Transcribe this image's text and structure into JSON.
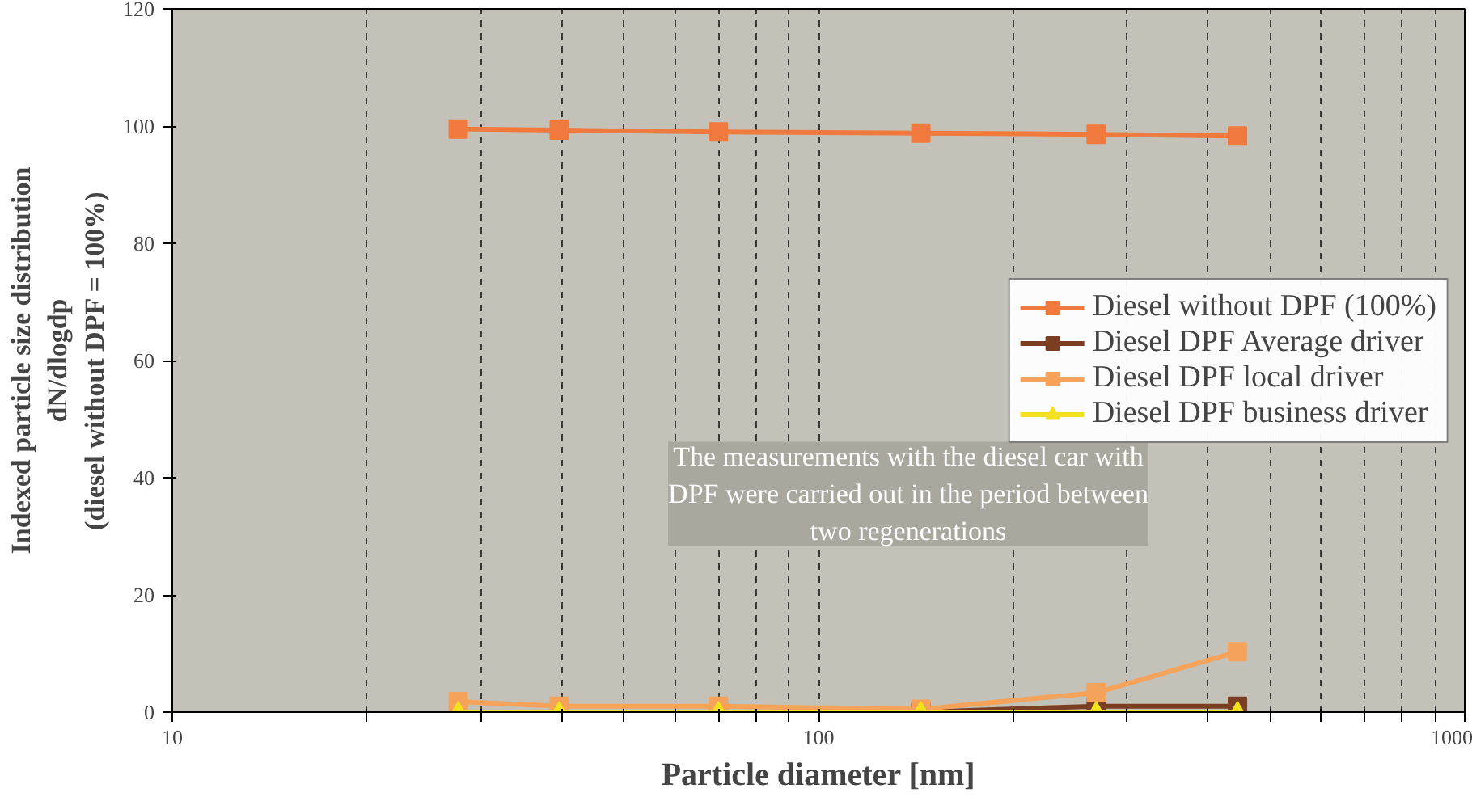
{
  "chart_data": {
    "type": "line",
    "xlabel": "Particle diameter [nm]",
    "ylabel": "Indexed particle size distribution\ndN/dlogdp\n(diesel without DPF = 100%)",
    "x": [
      27.7,
      39.7,
      70,
      144,
      269,
      445
    ],
    "series": [
      {
        "name": "Diesel without DPF (100%)",
        "color": "#f07a3e",
        "marker": "square",
        "values": [
          99.5,
          99.3,
          99,
          98.8,
          98.6,
          98.3
        ]
      },
      {
        "name": "Diesel DPF Average driver",
        "color": "#7a3f22",
        "marker": "square",
        "values": [
          null,
          null,
          0,
          0,
          1,
          1
        ]
      },
      {
        "name": "Diesel DPF local driver",
        "color": "#f5a25a",
        "marker": "square",
        "values": [
          1.8,
          1,
          1,
          0.5,
          3.3,
          10.3
        ]
      },
      {
        "name": "Diesel DPF business driver",
        "color": "#f2e21e",
        "marker": "triangle",
        "values": [
          0,
          0,
          0,
          0,
          0,
          0
        ]
      }
    ],
    "log": "x",
    "xlim": [
      10,
      1000
    ],
    "ylim": [
      0,
      120
    ],
    "xticks": [
      10,
      {
        "value": 20,
        "label": null
      },
      {
        "value": 30,
        "label": null
      },
      {
        "value": 40,
        "label": null
      },
      {
        "value": 50,
        "label": null
      },
      {
        "value": 60,
        "label": null
      },
      {
        "value": 70,
        "label": null
      },
      {
        "value": 80,
        "label": null
      },
      {
        "value": 90,
        "label": null
      },
      100,
      {
        "value": 200,
        "label": null
      },
      {
        "value": 300,
        "label": null
      },
      {
        "value": 400,
        "label": null
      },
      {
        "value": 500,
        "label": null
      },
      {
        "value": 600,
        "label": null
      },
      {
        "value": 700,
        "label": null
      },
      {
        "value": 800,
        "label": null
      },
      {
        "value": 900,
        "label": null
      },
      1000
    ],
    "yticks": [
      0,
      20,
      40,
      60,
      80,
      100,
      120
    ],
    "grid": "x",
    "legend": "right",
    "annotations": [
      "The measurements with the diesel car with\nDPF were carried out in the period between\ntwo regenerations"
    ]
  }
}
